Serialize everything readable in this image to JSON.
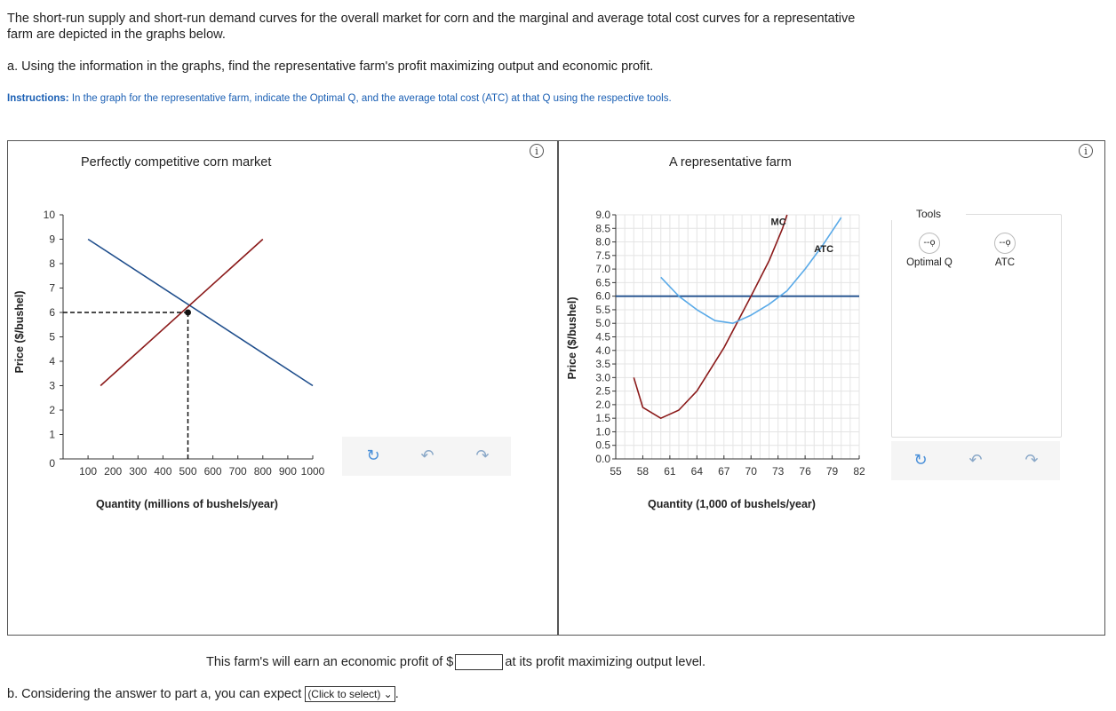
{
  "intro_text": "The short-run supply and short-run demand curves for the overall market for corn and the marginal and average total cost curves for a representative farm are depicted in the graphs below.",
  "question_a": "a. Using the information in the graphs, find the representative farm's profit maximizing output and economic profit.",
  "instructions": {
    "label": "Instructions:",
    "text": "In the graph for the representative farm, indicate the Optimal Q, and the average total cost (ATC) at that Q using the respective tools."
  },
  "info_icon_glyph": "i",
  "market_panel": {
    "title": "Perfectly competitive corn market",
    "ylabel": "Price ($/bushel)",
    "xlabel": "Quantity (millions of bushels/year)",
    "controls": {
      "reset": "↻",
      "undo": "↶",
      "redo": "↷"
    }
  },
  "farm_panel": {
    "title": "A representative farm",
    "ylabel": "Price ($/bushel)",
    "xlabel": "Quantity (1,000 of bushels/year)",
    "mc_label": "MC",
    "atc_label": "ATC",
    "controls": {
      "reset": "↻",
      "undo": "↶",
      "redo": "↷"
    }
  },
  "tools": {
    "title": "Tools",
    "items": [
      {
        "label": "Optimal Q",
        "icon": "--ọ"
      },
      {
        "label": "ATC",
        "icon": "--ọ"
      }
    ]
  },
  "chart_data": [
    {
      "type": "line",
      "title": "Perfectly competitive corn market",
      "xlabel": "Quantity (millions of bushels/year)",
      "ylabel": "Price ($/bushel)",
      "xlim": [
        0,
        1000
      ],
      "ylim": [
        0,
        10
      ],
      "x_ticks": [
        "100",
        "200",
        "300",
        "400",
        "500",
        "600",
        "700",
        "800",
        "900",
        "1000"
      ],
      "y_ticks": [
        "0",
        "1",
        "2",
        "3",
        "4",
        "5",
        "6",
        "7",
        "8",
        "9",
        "10"
      ],
      "series": [
        {
          "role": "demand",
          "color": "#1f4e8c",
          "points": [
            [
              100,
              9
            ],
            [
              1000,
              3
            ]
          ]
        },
        {
          "role": "supply",
          "color": "#8b1a1a",
          "points": [
            [
              150,
              3
            ],
            [
              800,
              9
            ]
          ]
        }
      ],
      "equilibrium": {
        "x": 500,
        "y": 6
      }
    },
    {
      "type": "line",
      "title": "A representative farm",
      "xlabel": "Quantity (1,000 of bushels/year)",
      "ylabel": "Price ($/bushel)",
      "xlim": [
        55,
        82
      ],
      "ylim": [
        0,
        9
      ],
      "x_ticks": [
        "55",
        "58",
        "61",
        "64",
        "67",
        "70",
        "73",
        "76",
        "79",
        "82"
      ],
      "y_ticks": [
        "0.0",
        "0.5",
        "1.0",
        "1.5",
        "2.0",
        "2.5",
        "3.0",
        "3.5",
        "4.0",
        "4.5",
        "5.0",
        "5.5",
        "6.0",
        "6.5",
        "7.0",
        "7.5",
        "8.0",
        "8.5",
        "9.0"
      ],
      "price_line": {
        "y": 6,
        "color": "#1f4e8c"
      },
      "series": [
        {
          "name": "MC",
          "color": "#8b1a1a",
          "points": [
            [
              57,
              3.0
            ],
            [
              58,
              1.9
            ],
            [
              60,
              1.5
            ],
            [
              62,
              1.8
            ],
            [
              64,
              2.5
            ],
            [
              67,
              4.1
            ],
            [
              70,
              6.0
            ],
            [
              72,
              7.3
            ],
            [
              73.5,
              8.5
            ],
            [
              74,
              9.0
            ]
          ]
        },
        {
          "name": "ATC",
          "color": "#5aaae8",
          "points": [
            [
              60,
              6.7
            ],
            [
              62,
              6.0
            ],
            [
              64,
              5.5
            ],
            [
              66,
              5.1
            ],
            [
              68,
              5.0
            ],
            [
              70,
              5.3
            ],
            [
              72,
              5.7
            ],
            [
              74,
              6.2
            ],
            [
              76,
              7.0
            ],
            [
              78,
              7.9
            ],
            [
              80,
              8.9
            ]
          ]
        }
      ]
    }
  ],
  "answer": {
    "prefix": "This farm's will earn an economic profit of $",
    "suffix": "at its profit maximizing output level."
  },
  "part_b": {
    "text": "b. Considering the answer to part a, you can expect",
    "select": "(Click to select)",
    "dropdown_icon": "⌄",
    "end": "."
  }
}
